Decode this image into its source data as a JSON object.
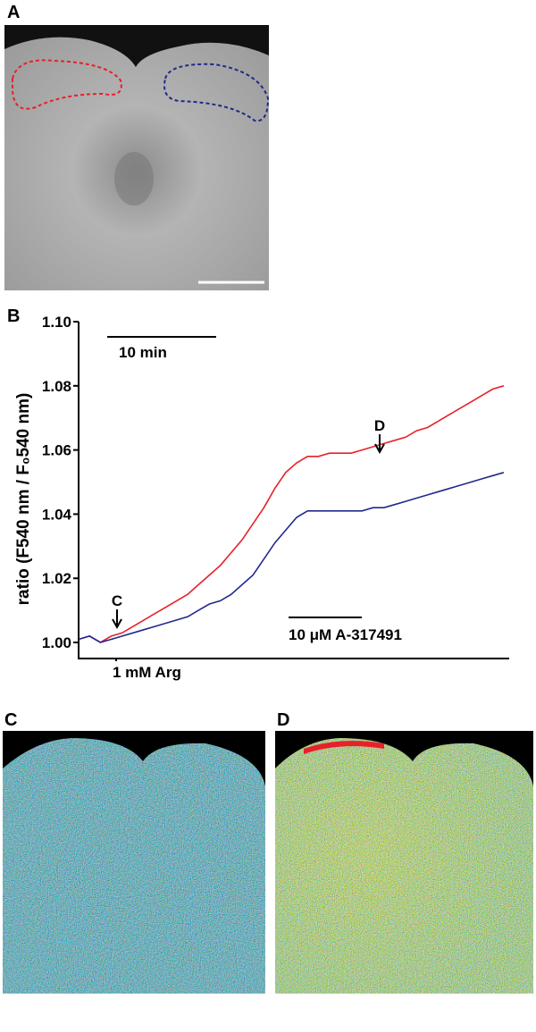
{
  "panel_labels": [
    "A",
    "B",
    "C",
    "D"
  ],
  "chart_data": {
    "type": "line",
    "y_label": "ratio (F540 nm / F₀540 nm)",
    "annotations": [
      "10 min",
      "1 mM Arg",
      "10 μM A-317491",
      "C",
      "D"
    ],
    "x": [
      0,
      1,
      2,
      3,
      4,
      5,
      6,
      7,
      8,
      9,
      10,
      11,
      12,
      13,
      14,
      15,
      16,
      17,
      18,
      19,
      20,
      21,
      22,
      23,
      24,
      25,
      26,
      27,
      28,
      29,
      30,
      31,
      32,
      33,
      34,
      35,
      36,
      37,
      38,
      39
    ],
    "xlim": [
      0,
      39.5
    ],
    "ylim": [
      0.995,
      1.1
    ],
    "yticks": [
      {
        "value": 1.0,
        "label": "1.00"
      },
      {
        "value": 1.02,
        "label": "1.02"
      },
      {
        "value": 1.04,
        "label": "1.04"
      },
      {
        "value": 1.06,
        "label": "1.06"
      },
      {
        "value": 1.08,
        "label": "1.08"
      },
      {
        "value": 1.1,
        "label": "1.10"
      }
    ],
    "series": [
      {
        "color": "#e8202a",
        "values": [
          1.001,
          1.002,
          1.0,
          1.002,
          1.003,
          1.005,
          1.007,
          1.009,
          1.011,
          1.013,
          1.015,
          1.018,
          1.021,
          1.024,
          1.028,
          1.032,
          1.037,
          1.042,
          1.048,
          1.053,
          1.056,
          1.058,
          1.058,
          1.059,
          1.059,
          1.059,
          1.06,
          1.061,
          1.062,
          1.063,
          1.064,
          1.066,
          1.067,
          1.069,
          1.071,
          1.073,
          1.075,
          1.077,
          1.079,
          1.08
        ]
      },
      {
        "color": "#1f2a8c",
        "values": [
          1.001,
          1.002,
          1.0,
          1.001,
          1.002,
          1.003,
          1.004,
          1.005,
          1.006,
          1.007,
          1.008,
          1.01,
          1.012,
          1.013,
          1.015,
          1.018,
          1.021,
          1.026,
          1.031,
          1.035,
          1.039,
          1.041,
          1.041,
          1.041,
          1.041,
          1.041,
          1.041,
          1.042,
          1.042,
          1.043,
          1.044,
          1.045,
          1.046,
          1.047,
          1.048,
          1.049,
          1.05,
          1.051,
          1.052,
          1.053
        ]
      }
    ]
  }
}
